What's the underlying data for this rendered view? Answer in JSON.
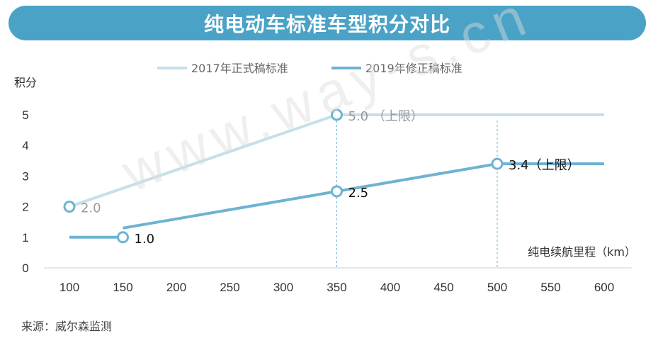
{
  "title": "纯电动车标准车型积分对比",
  "source": "来源：威尔森监测",
  "watermark": "www.way-s.cn",
  "chart_data": {
    "type": "line",
    "ylabel": "积分",
    "xlabel": "纯电续航里程（km）",
    "x_ticks": [
      100,
      150,
      200,
      250,
      300,
      350,
      400,
      450,
      500,
      550,
      600
    ],
    "y_ticks": [
      0,
      1,
      2,
      3,
      4,
      5
    ],
    "xlim": [
      100,
      600
    ],
    "ylim": [
      0,
      5
    ],
    "legend_position": "top-center",
    "series": [
      {
        "name": "2017年正式稿标准",
        "color": "#c5e0ec",
        "points": [
          [
            100,
            2.0
          ],
          [
            350,
            5.0
          ],
          [
            600,
            5.0
          ]
        ]
      },
      {
        "name": "2019年修正稿标准",
        "color": "#6db3d2",
        "segments": [
          [
            [
              100,
              1.0
            ],
            [
              150,
              1.0
            ]
          ],
          [
            [
              150,
              1.3
            ],
            [
              350,
              2.5
            ],
            [
              500,
              3.4
            ],
            [
              600,
              3.4
            ]
          ]
        ]
      }
    ],
    "markers": [
      {
        "x": 100,
        "y": 2.0,
        "label": "2.0",
        "color": "#999999"
      },
      {
        "x": 350,
        "y": 5.0,
        "label": "5.0 （上限）",
        "color": "#999999"
      },
      {
        "x": 150,
        "y": 1.0,
        "label": "1.0",
        "color": "#111111"
      },
      {
        "x": 350,
        "y": 2.5,
        "label": "2.5",
        "color": "#111111"
      },
      {
        "x": 500,
        "y": 3.4,
        "label": "3.4（上限）",
        "color": "#111111"
      }
    ],
    "reference_lines_x": [
      350,
      500
    ]
  }
}
